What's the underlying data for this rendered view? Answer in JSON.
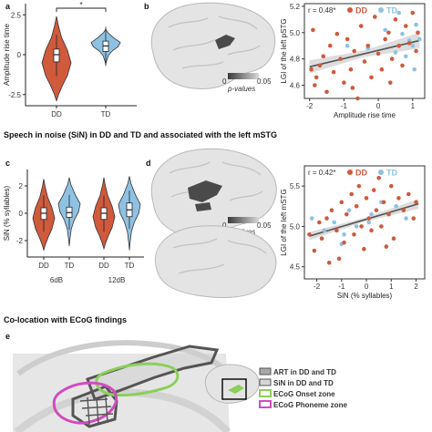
{
  "panel_labels": {
    "a": "a",
    "b": "b",
    "c": "c",
    "d": "d",
    "e": "e"
  },
  "headings": {
    "sin": "Speech in noise (SiN) in DD and TD and associated with the left mSTG",
    "ecog": "Co-location with ECoG findings"
  },
  "colors": {
    "dd": "#cf5a3c",
    "td": "#8fc2e2",
    "brain": "#dcdcdc",
    "region": "#4a4a4a",
    "onset": "#8ccf5a",
    "phoneme": "#d24bc0"
  },
  "colorbar": {
    "min": "0",
    "max": "0.05",
    "label": "p-values"
  },
  "chart_data": [
    {
      "type": "violin",
      "id": "a",
      "categories": [
        "DD",
        "TD"
      ],
      "ylabel": "Amplitude rise time",
      "yticks": [
        "2.5",
        "0",
        "-2.5"
      ],
      "ylim": [
        -3.2,
        3.2
      ],
      "significance": "*",
      "median": [
        0.0,
        0.55
      ],
      "q1": [
        -0.45,
        0.2
      ],
      "q3": [
        0.35,
        0.85
      ]
    },
    {
      "type": "scatter",
      "id": "a-right",
      "xlabel": "Amplitude rise time",
      "ylabel": "LGI of the left pSTG",
      "annotation": "r = 0.48*",
      "legend": [
        "DD",
        "TD"
      ],
      "xticks": [
        "-2",
        "-1",
        "0",
        "1"
      ],
      "yticks": [
        "5.2",
        "5.0",
        "4.8",
        "4.6"
      ],
      "xlim": [
        -2.15,
        1.35
      ],
      "ylim": [
        4.5,
        5.22
      ],
      "fit": {
        "x": [
          -2.0,
          1.2
        ],
        "y": [
          4.74,
          4.94
        ]
      },
      "dd": [
        [
          -1.9,
          5.02
        ],
        [
          -1.85,
          4.6
        ],
        [
          -1.8,
          4.66
        ],
        [
          -1.7,
          4.75
        ],
        [
          -1.6,
          4.82
        ],
        [
          -1.5,
          4.55
        ],
        [
          -1.4,
          4.9
        ],
        [
          -1.3,
          4.7
        ],
        [
          -1.2,
          4.99
        ],
        [
          -1.1,
          4.8
        ],
        [
          -1.0,
          4.62
        ],
        [
          -0.9,
          4.95
        ],
        [
          -0.8,
          4.72
        ],
        [
          -0.7,
          4.86
        ],
        [
          -0.6,
          4.5
        ],
        [
          -0.5,
          5.05
        ],
        [
          -0.4,
          4.78
        ],
        [
          -0.3,
          4.9
        ],
        [
          -0.2,
          4.66
        ],
        [
          -0.1,
          5.12
        ],
        [
          0.0,
          4.84
        ],
        [
          0.1,
          4.72
        ],
        [
          0.2,
          4.95
        ],
        [
          0.3,
          5.0
        ],
        [
          0.4,
          4.8
        ],
        [
          0.5,
          5.1
        ],
        [
          0.6,
          4.9
        ],
        [
          0.7,
          4.75
        ],
        [
          0.8,
          5.05
        ],
        [
          0.9,
          4.92
        ],
        [
          1.0,
          5.15
        ],
        [
          1.1,
          4.86
        ],
        [
          1.15,
          5.0
        ],
        [
          -1.95,
          4.72
        ],
        [
          -0.75,
          4.58
        ],
        [
          0.35,
          4.62
        ]
      ],
      "td": [
        [
          -0.9,
          4.9
        ],
        [
          -0.3,
          4.88
        ],
        [
          0.2,
          5.02
        ],
        [
          0.5,
          4.85
        ],
        [
          0.7,
          4.99
        ],
        [
          0.8,
          4.82
        ],
        [
          0.9,
          4.94
        ],
        [
          1.0,
          4.9
        ],
        [
          1.05,
          4.72
        ],
        [
          1.1,
          5.06
        ],
        [
          1.2,
          4.95
        ],
        [
          0.6,
          5.15
        ]
      ]
    },
    {
      "type": "violin",
      "id": "c",
      "categories": [
        "DD",
        "TD",
        "DD",
        "TD"
      ],
      "groups": [
        "6dB",
        "12dB"
      ],
      "ylabel": "SiN (% syllables)",
      "yticks": [
        "2",
        "0",
        "-2"
      ],
      "ylim": [
        -3.2,
        3.2
      ],
      "median": [
        0.0,
        0.05,
        0.0,
        0.25
      ],
      "q1": [
        -0.45,
        -0.3,
        -0.45,
        -0.25
      ],
      "q3": [
        0.4,
        0.45,
        0.4,
        0.75
      ]
    },
    {
      "type": "scatter",
      "id": "d-right",
      "xlabel": "SiN (% syllables)",
      "ylabel": "LGI of the left mSTG",
      "annotation": "r = 0.42*",
      "legend": [
        "DD",
        "TD"
      ],
      "xticks": [
        "-2",
        "-1",
        "0",
        "1",
        "2"
      ],
      "yticks": [
        "5.5",
        "5.0",
        "4.5"
      ],
      "xlim": [
        -2.5,
        2.35
      ],
      "ylim": [
        4.35,
        5.75
      ],
      "fit": {
        "x": [
          -2.3,
          2.1
        ],
        "y": [
          4.88,
          5.28
        ]
      },
      "dd": [
        [
          -2.3,
          4.9
        ],
        [
          -2.1,
          4.7
        ],
        [
          -1.9,
          5.05
        ],
        [
          -1.8,
          4.85
        ],
        [
          -1.6,
          5.1
        ],
        [
          -1.5,
          4.55
        ],
        [
          -1.4,
          5.2
        ],
        [
          -1.2,
          4.95
        ],
        [
          -1.0,
          5.3
        ],
        [
          -0.9,
          4.8
        ],
        [
          -0.8,
          5.15
        ],
        [
          -0.6,
          5.4
        ],
        [
          -0.5,
          4.9
        ],
        [
          -0.4,
          5.25
        ],
        [
          -0.3,
          5.5
        ],
        [
          -0.2,
          5.0
        ],
        [
          0.0,
          5.35
        ],
        [
          0.1,
          5.1
        ],
        [
          0.2,
          4.95
        ],
        [
          0.3,
          5.45
        ],
        [
          0.4,
          5.2
        ],
        [
          0.5,
          5.6
        ],
        [
          0.6,
          5.0
        ],
        [
          0.7,
          5.3
        ],
        [
          0.9,
          5.15
        ],
        [
          1.0,
          5.5
        ],
        [
          1.1,
          4.85
        ],
        [
          1.3,
          5.35
        ],
        [
          1.5,
          5.2
        ],
        [
          1.7,
          5.4
        ],
        [
          1.9,
          5.1
        ],
        [
          2.0,
          5.3
        ],
        [
          -1.1,
          4.6
        ],
        [
          0.8,
          4.75
        ],
        [
          -0.1,
          4.72
        ]
      ],
      "td": [
        [
          -2.2,
          5.1
        ],
        [
          -1.7,
          4.95
        ],
        [
          -1.3,
          5.05
        ],
        [
          -0.9,
          4.9
        ],
        [
          -0.7,
          5.2
        ],
        [
          -0.4,
          5.0
        ],
        [
          0.2,
          5.15
        ],
        [
          0.6,
          5.3
        ],
        [
          1.2,
          5.25
        ],
        [
          1.6,
          5.1
        ],
        [
          0.1,
          5.05
        ],
        [
          -1.0,
          4.78
        ]
      ]
    }
  ],
  "groups_c": [
    "6dB",
    "12dB"
  ],
  "ecog_legend": [
    "ART in DD and TD",
    "SiN in DD and TD",
    "ECoG Onset zone",
    "ECoG Phoneme zone"
  ]
}
